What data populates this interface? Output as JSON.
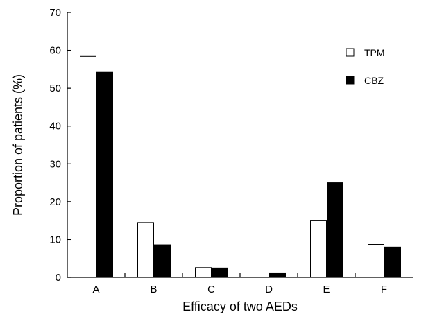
{
  "chart_data": {
    "type": "bar",
    "xlabel": "Efficacy of two AEDs",
    "ylabel": "Proportion of patients (%)",
    "ylim": [
      0,
      70
    ],
    "yticks": [
      0,
      10,
      20,
      30,
      40,
      50,
      60,
      70
    ],
    "categories": [
      "A",
      "B",
      "C",
      "D",
      "E",
      "F"
    ],
    "series": [
      {
        "name": "TPM",
        "color": "#ffffff",
        "values": [
          58.4,
          14.5,
          2.6,
          0,
          15.1,
          8.7
        ]
      },
      {
        "name": "CBZ",
        "color": "#000000",
        "values": [
          54.2,
          8.6,
          2.5,
          1.2,
          25.0,
          8.0
        ]
      }
    ],
    "grid": false,
    "legend": "top-right"
  }
}
